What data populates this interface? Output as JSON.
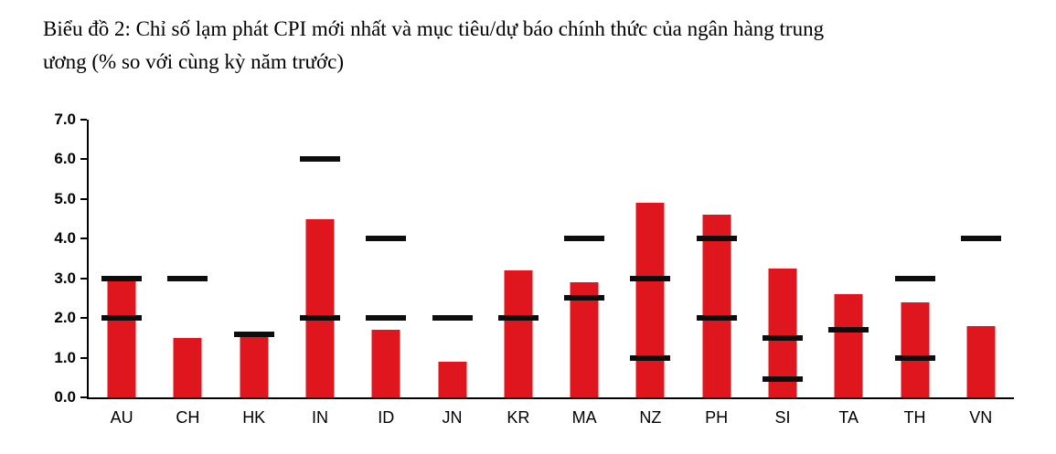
{
  "page": {
    "title_line1": "Biểu đồ 2: Chỉ số lạm phát CPI mới nhất và mục tiêu/dự báo chính thức của ngân hàng trung",
    "title_line2": "ương (% so với cùng kỳ năm trước)"
  },
  "colors": {
    "bar": "#e0161f",
    "marker": "#0d0d0d",
    "axis": "#000000",
    "text": "#000000"
  },
  "chart_data": {
    "type": "bar",
    "title": "Biểu đồ 2: Chỉ số lạm phát CPI mới nhất và mục tiêu/dự báo chính thức của ngân hàng trung ương (% so với cùng kỳ năm trước)",
    "categories": [
      "AU",
      "CH",
      "HK",
      "IN",
      "ID",
      "JN",
      "KR",
      "MA",
      "NZ",
      "PH",
      "SI",
      "TA",
      "TH",
      "VN"
    ],
    "series": [
      {
        "name": "Chỉ số lạm phát CPI mới nhất",
        "type": "bar",
        "values": [
          3.0,
          1.5,
          1.6,
          4.5,
          1.7,
          0.9,
          3.2,
          2.9,
          4.9,
          4.6,
          3.25,
          2.6,
          2.4,
          1.8
        ]
      },
      {
        "name": "Mục tiêu/dự báo chính thức của ngân hàng trung ương",
        "type": "marker",
        "values_per_category": [
          [
            2.0,
            3.0
          ],
          [
            3.0
          ],
          [
            1.6
          ],
          [
            2.0,
            6.0
          ],
          [
            2.0,
            4.0
          ],
          [
            2.0
          ],
          [
            2.0
          ],
          [
            2.5,
            4.0
          ],
          [
            1.0,
            3.0
          ],
          [
            2.0,
            4.0
          ],
          [
            0.45,
            1.5
          ],
          [
            1.7
          ],
          [
            1.0,
            3.0
          ],
          [
            4.0
          ]
        ]
      }
    ],
    "xlabel": "",
    "ylabel": "",
    "ylim": [
      0.0,
      7.0
    ],
    "ytick_step": 1.0,
    "ytick_format": "one_decimal",
    "grid": false,
    "legend": "none"
  }
}
